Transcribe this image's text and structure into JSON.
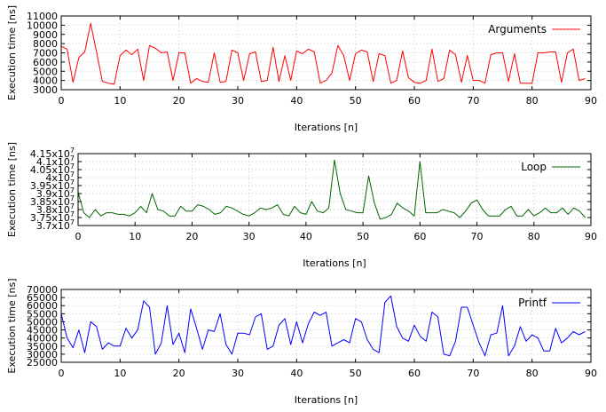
{
  "chart_data": [
    {
      "type": "line",
      "xlabel": "Iterations [n]",
      "ylabel": "Execution time [ns]",
      "xlim": [
        0,
        90
      ],
      "ylim": [
        3000,
        11000
      ],
      "xticks": [
        0,
        10,
        20,
        30,
        40,
        50,
        60,
        70,
        80,
        90
      ],
      "xtick_labels": [
        "0",
        "10",
        "20",
        "30",
        "40",
        "50",
        "60",
        "70",
        "80",
        "90"
      ],
      "yticks": [
        3000,
        4000,
        5000,
        6000,
        7000,
        8000,
        9000,
        10000,
        11000
      ],
      "ytick_labels": [
        "3000",
        "4000",
        "5000",
        "6000",
        "7000",
        "8000",
        "9000",
        "10000",
        "11000"
      ],
      "grid": true,
      "legend_position": "top-right",
      "series": [
        {
          "name": "Arguments",
          "color": "#ff0000",
          "x": [
            0,
            1,
            2,
            3,
            4,
            5,
            6,
            7,
            8,
            9,
            10,
            11,
            12,
            13,
            14,
            15,
            16,
            17,
            18,
            19,
            20,
            21,
            22,
            23,
            24,
            25,
            26,
            27,
            28,
            29,
            30,
            31,
            32,
            33,
            34,
            35,
            36,
            37,
            38,
            39,
            40,
            41,
            42,
            43,
            44,
            45,
            46,
            47,
            48,
            49,
            50,
            51,
            52,
            53,
            54,
            55,
            56,
            57,
            58,
            59,
            60,
            61,
            62,
            63,
            64,
            65,
            66,
            67,
            68,
            69,
            70,
            71,
            72,
            73,
            74,
            75,
            76,
            77,
            78,
            79,
            80,
            81,
            82,
            83,
            84,
            85,
            86,
            87,
            88,
            89
          ],
          "values": [
            7700,
            7400,
            3800,
            6500,
            7100,
            10200,
            7100,
            3900,
            3700,
            3600,
            6700,
            7300,
            6800,
            7400,
            4000,
            7800,
            7500,
            7000,
            7100,
            4000,
            7000,
            7000,
            3700,
            4200,
            3900,
            3800,
            7000,
            3800,
            3900,
            7300,
            7000,
            4000,
            6900,
            7100,
            3900,
            4000,
            7600,
            3900,
            6700,
            4000,
            7200,
            6900,
            7400,
            7100,
            3700,
            4000,
            4800,
            7800,
            6700,
            4000,
            6900,
            7300,
            7100,
            3900,
            6900,
            6700,
            3700,
            4000,
            7200,
            4300,
            3800,
            3700,
            4000,
            7400,
            3900,
            4200,
            7300,
            6800,
            3800,
            6700,
            4000,
            4000,
            3700,
            6800,
            7000,
            7000,
            3900,
            6900,
            3700,
            3700,
            3700,
            7000,
            7000,
            7100,
            7100,
            3800,
            7000,
            7400,
            4000,
            4200
          ]
        }
      ]
    },
    {
      "type": "line",
      "xlabel": "Iterations [n]",
      "ylabel": "Execution time [ns]",
      "xlim": [
        0,
        90
      ],
      "ylim": [
        37000000,
        41500000
      ],
      "xticks": [
        0,
        10,
        20,
        30,
        40,
        50,
        60,
        70,
        80,
        90
      ],
      "xtick_labels": [
        "0",
        "10",
        "20",
        "30",
        "40",
        "50",
        "60",
        "70",
        "80",
        "90"
      ],
      "yticks": [
        37000000,
        37500000,
        38000000,
        38500000,
        39000000,
        39500000,
        40000000,
        40500000,
        41000000,
        41500000
      ],
      "ytick_labels": [
        "3.7x10^7",
        "3.75x10^7",
        "3.8x10^7",
        "3.85x10^7",
        "3.9x10^7",
        "3.95x10^7",
        "4x10^7",
        "4.05x10^7",
        "4.1x10^7",
        "4.15x10^7"
      ],
      "grid": true,
      "legend_position": "top-right",
      "series": [
        {
          "name": "Loop",
          "color": "#006400",
          "x": [
            0,
            1,
            2,
            3,
            4,
            5,
            6,
            7,
            8,
            9,
            10,
            11,
            12,
            13,
            14,
            15,
            16,
            17,
            18,
            19,
            20,
            21,
            22,
            23,
            24,
            25,
            26,
            27,
            28,
            29,
            30,
            31,
            32,
            33,
            34,
            35,
            36,
            37,
            38,
            39,
            40,
            41,
            42,
            43,
            44,
            45,
            46,
            47,
            48,
            49,
            50,
            51,
            52,
            53,
            54,
            55,
            56,
            57,
            58,
            59,
            60,
            61,
            62,
            63,
            64,
            65,
            66,
            67,
            68,
            69,
            70,
            71,
            72,
            73,
            74,
            75,
            76,
            77,
            78,
            79,
            80,
            81,
            82,
            83,
            84,
            85,
            86,
            87,
            88,
            89
          ],
          "values": [
            39100000,
            37800000,
            37500000,
            38000000,
            37600000,
            37800000,
            37800000,
            37700000,
            37700000,
            37600000,
            37800000,
            38200000,
            37800000,
            39000000,
            38000000,
            37900000,
            37600000,
            37600000,
            38200000,
            37900000,
            37900000,
            38300000,
            38200000,
            38000000,
            37700000,
            37800000,
            38200000,
            38100000,
            37900000,
            37700000,
            37600000,
            37800000,
            38100000,
            38000000,
            38100000,
            38300000,
            37700000,
            37600000,
            38200000,
            37800000,
            37700000,
            38500000,
            37900000,
            37800000,
            38100000,
            41100000,
            39000000,
            38000000,
            37900000,
            37800000,
            37800000,
            40100000,
            38400000,
            37400000,
            37500000,
            37700000,
            38400000,
            38100000,
            37900000,
            37600000,
            41000000,
            37800000,
            37800000,
            37800000,
            38000000,
            37900000,
            37800000,
            37500000,
            37900000,
            38400000,
            38600000,
            38000000,
            37600000,
            37600000,
            37600000,
            38000000,
            38200000,
            37600000,
            37600000,
            38000000,
            37600000,
            37800000,
            38100000,
            37800000,
            37800000,
            38100000,
            37700000,
            38100000,
            37900000,
            37500000
          ]
        }
      ]
    },
    {
      "type": "line",
      "xlabel": "Iterations [n]",
      "ylabel": "Execution time [ns]",
      "xlim": [
        0,
        90
      ],
      "ylim": [
        25000,
        70000
      ],
      "xticks": [
        0,
        10,
        20,
        30,
        40,
        50,
        60,
        70,
        80,
        90
      ],
      "xtick_labels": [
        "0",
        "10",
        "20",
        "30",
        "40",
        "50",
        "60",
        "70",
        "80",
        "90"
      ],
      "yticks": [
        25000,
        30000,
        35000,
        40000,
        45000,
        50000,
        55000,
        60000,
        65000,
        70000
      ],
      "ytick_labels": [
        "25000",
        "30000",
        "35000",
        "40000",
        "45000",
        "50000",
        "55000",
        "60000",
        "65000",
        "70000"
      ],
      "grid": true,
      "legend_position": "top-right",
      "series": [
        {
          "name": "Printf",
          "color": "#0000ff",
          "x": [
            0,
            1,
            2,
            3,
            4,
            5,
            6,
            7,
            8,
            9,
            10,
            11,
            12,
            13,
            14,
            15,
            16,
            17,
            18,
            19,
            20,
            21,
            22,
            23,
            24,
            25,
            26,
            27,
            28,
            29,
            30,
            31,
            32,
            33,
            34,
            35,
            36,
            37,
            38,
            39,
            40,
            41,
            42,
            43,
            44,
            45,
            46,
            47,
            48,
            49,
            50,
            51,
            52,
            53,
            54,
            55,
            56,
            57,
            58,
            59,
            60,
            61,
            62,
            63,
            64,
            65,
            66,
            67,
            68,
            69,
            70,
            71,
            72,
            73,
            74,
            75,
            76,
            77,
            78,
            79,
            80,
            81,
            82,
            83,
            84,
            85,
            86,
            87,
            88,
            89
          ],
          "values": [
            55000,
            40000,
            34000,
            45000,
            31000,
            50000,
            47000,
            33000,
            37000,
            35000,
            35000,
            46000,
            40000,
            45000,
            63000,
            59000,
            30000,
            37000,
            60000,
            36000,
            43000,
            31000,
            58000,
            46000,
            33000,
            45000,
            44000,
            55000,
            36000,
            30000,
            43000,
            43000,
            42000,
            53000,
            55000,
            33000,
            35000,
            48000,
            52000,
            36000,
            50000,
            37000,
            49000,
            56000,
            54000,
            56000,
            35000,
            37000,
            39000,
            37000,
            52000,
            50000,
            39000,
            33000,
            31000,
            62000,
            66000,
            47000,
            40000,
            38000,
            48000,
            41000,
            38000,
            56000,
            53000,
            30000,
            29000,
            38000,
            59000,
            59000,
            48000,
            37000,
            29000,
            42000,
            43000,
            60000,
            29000,
            35000,
            47000,
            38000,
            42000,
            40000,
            32000,
            32000,
            46000,
            37000,
            40000,
            44000,
            42000,
            44000
          ]
        }
      ]
    }
  ]
}
